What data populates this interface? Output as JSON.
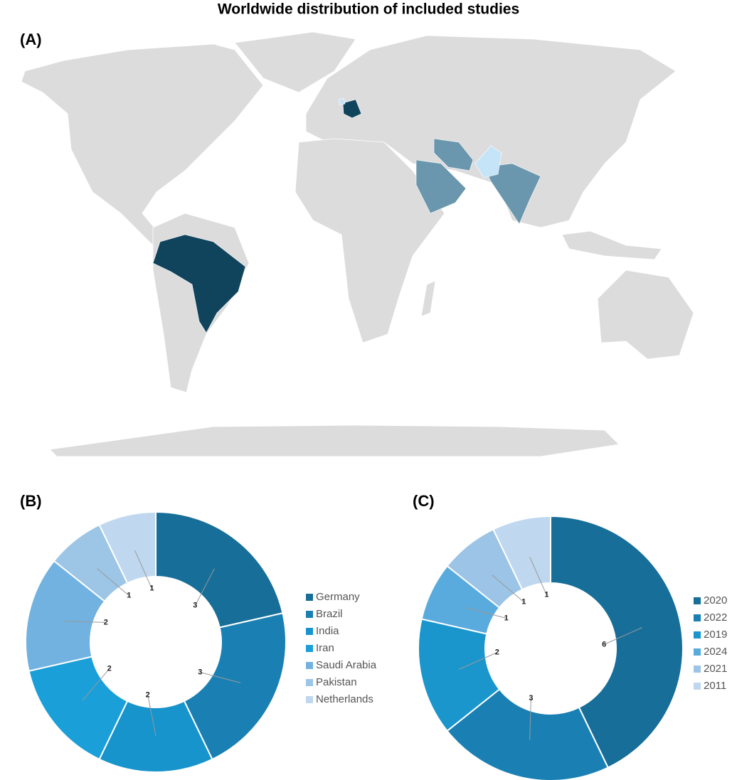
{
  "title": "Worldwide distribution of included studies",
  "chart_data": [
    {
      "type": "map",
      "panel_label": "(A)",
      "land_color": "#dcdcdc",
      "colors": [
        "#c5e4f7",
        "#6a97ae",
        "#10435c"
      ]
    },
    {
      "type": "donut",
      "panel_label": "(B)",
      "categories": [
        "Germany",
        "Brazil",
        "India",
        "Iran",
        "Saudi Arabia",
        "Pakistan",
        "Netherlands"
      ],
      "values": [
        3,
        3,
        2,
        2,
        2,
        1,
        1
      ],
      "colors": [
        "#176e99",
        "#1a80b3",
        "#1794cc",
        "#1a9fd8",
        "#72b2e0",
        "#9cc5e6",
        "#bfd8ef"
      ]
    },
    {
      "type": "donut",
      "panel_label": "(C)",
      "categories": [
        "2020",
        "2022",
        "2019",
        "2024",
        "2021",
        "2011"
      ],
      "values": [
        6,
        3,
        2,
        1,
        1,
        1
      ],
      "colors": [
        "#176e99",
        "#1a80b3",
        "#1a96cd",
        "#5aabdd",
        "#9bc4e6",
        "#bfd8ef"
      ]
    }
  ]
}
